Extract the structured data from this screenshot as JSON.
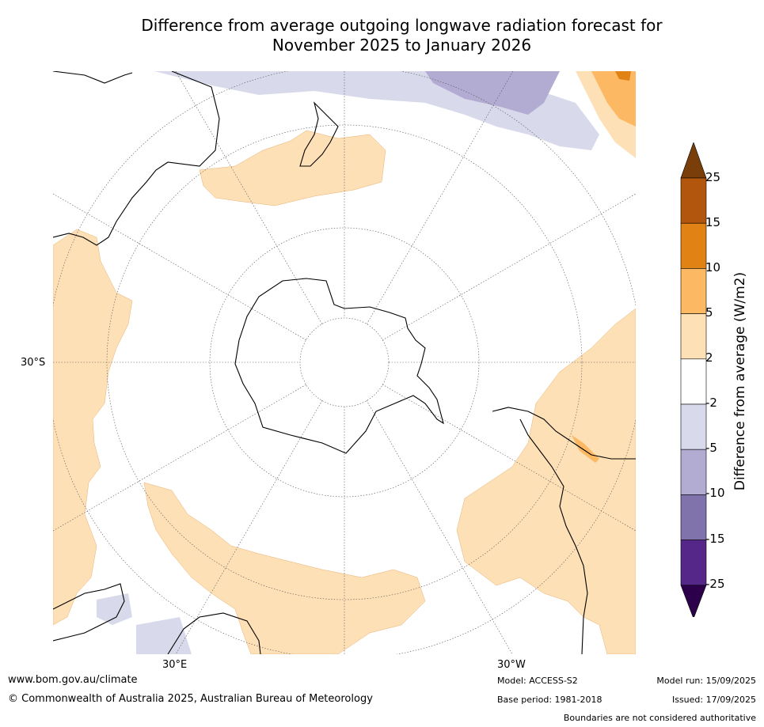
{
  "title": {
    "line1": "Difference from average outgoing longwave radiation forecast for",
    "line2": "November 2025 to January 2026"
  },
  "map": {
    "projection": "south-polar-stereographic",
    "graticule": {
      "lat_label": "30°S",
      "lon_labels": [
        "30°E",
        "30°W"
      ]
    }
  },
  "colorbar": {
    "label": "Difference from average (W/m2)",
    "ticks": [
      "25",
      "15",
      "10",
      "5",
      "2",
      "-2",
      "-5",
      "-10",
      "-15",
      "-25"
    ],
    "colors": [
      "#7a3e0a",
      "#b3560d",
      "#e08214",
      "#fdb863",
      "#fee0b6",
      "#ffffff",
      "#d8daeb",
      "#b2abd2",
      "#8073ac",
      "#542788",
      "#2d004b"
    ]
  },
  "footer": {
    "url": "www.bom.gov.au/climate",
    "copyright": "© Commonwealth of Australia 2025, Australian Bureau of Meteorology",
    "model": "Model: ACCESS-S2",
    "base_period": "Base period: 1981-2018",
    "model_run": "Model run: 15/09/2025",
    "issued": "Issued: 17/09/2025",
    "disclaimer": "Boundaries are not considered authoritative"
  }
}
